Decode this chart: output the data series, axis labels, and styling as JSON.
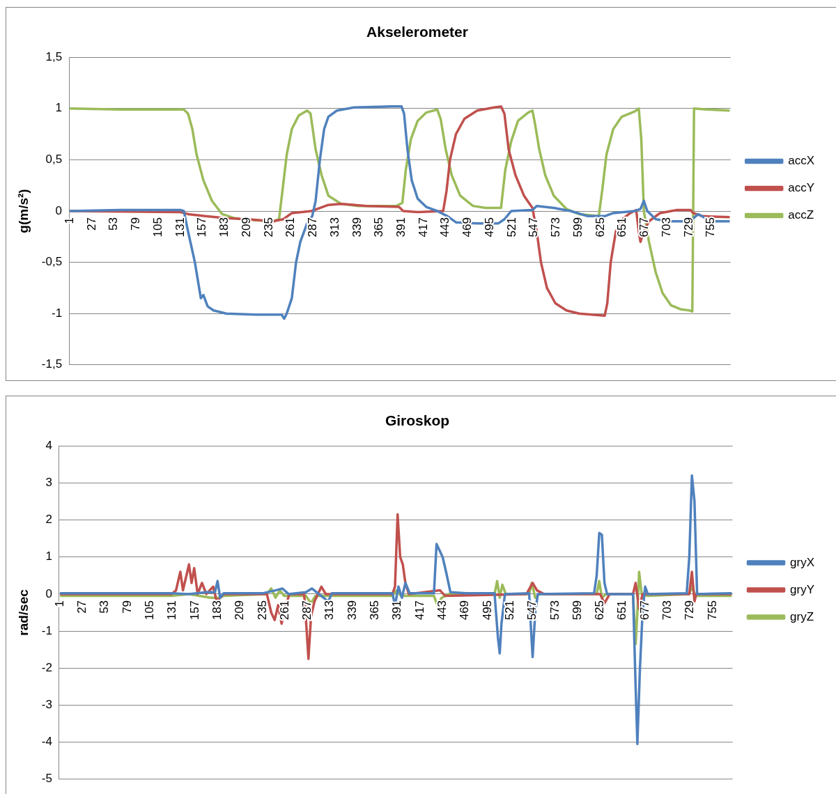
{
  "chart_data": [
    {
      "type": "line",
      "title": "Akselerometer",
      "ylabel": "g(m/s²)",
      "legend": "right",
      "grid": "y",
      "xlim": [
        0,
        778
      ],
      "xticks": [
        1,
        27,
        53,
        79,
        105,
        131,
        157,
        183,
        209,
        235,
        261,
        287,
        313,
        339,
        365,
        391,
        417,
        443,
        469,
        495,
        521,
        547,
        573,
        599,
        625,
        651,
        677,
        703,
        729,
        755
      ],
      "ylim": [
        -1.5,
        1.5
      ],
      "yticks": [
        {
          "value": -1.5,
          "label": "-1,5"
        },
        -1,
        {
          "value": -0.5,
          "label": "-0,5"
        },
        0,
        {
          "value": 0.5,
          "label": "0,5"
        },
        1,
        {
          "value": 1.5,
          "label": "1,5"
        }
      ],
      "series": [
        {
          "name": "accX",
          "color": "#4f81bd",
          "x": [
            1,
            60,
            131,
            135,
            140,
            148,
            153,
            155,
            158,
            163,
            170,
            185,
            220,
            250,
            253,
            256,
            262,
            267,
            272,
            280,
            286,
            290,
            295,
            300,
            305,
            315,
            335,
            380,
            391,
            394,
            398,
            403,
            410,
            420,
            433,
            445,
            455,
            480,
            505,
            512,
            520,
            545,
            550,
            570,
            590,
            610,
            630,
            640,
            665,
            672,
            676,
            680,
            690,
            705,
            730,
            740,
            755,
            777
          ],
          "values": [
            0,
            0.01,
            0.01,
            0,
            -0.2,
            -0.5,
            -0.75,
            -0.85,
            -0.82,
            -0.93,
            -0.97,
            -1,
            -1.01,
            -1.01,
            -1.05,
            -1,
            -0.85,
            -0.5,
            -0.3,
            -0.12,
            -0.05,
            0.1,
            0.5,
            0.8,
            0.92,
            0.98,
            1.01,
            1.02,
            1.02,
            0.95,
            0.6,
            0.3,
            0.12,
            0.04,
            0,
            -0.05,
            -0.11,
            -0.12,
            -0.12,
            -0.08,
            0,
            0.01,
            0.05,
            0.03,
            0,
            -0.05,
            -0.05,
            -0.02,
            0,
            0.02,
            0.1,
            0,
            -0.08,
            -0.1,
            -0.1,
            -0.03,
            -0.1,
            -0.1
          ]
        },
        {
          "name": "accY",
          "color": "#c0504d",
          "x": [
            1,
            131,
            140,
            160,
            185,
            210,
            240,
            252,
            262,
            285,
            295,
            305,
            320,
            350,
            388,
            393,
            410,
            440,
            444,
            448,
            455,
            465,
            480,
            500,
            508,
            512,
            517,
            525,
            535,
            545,
            550,
            555,
            562,
            572,
            585,
            600,
            630,
            633,
            637,
            643,
            652,
            660,
            667,
            670,
            672,
            676,
            682,
            695,
            715,
            731,
            734,
            745,
            777
          ],
          "values": [
            0,
            -0.01,
            -0.03,
            -0.05,
            -0.07,
            -0.08,
            -0.1,
            -0.08,
            -0.02,
            0,
            0.03,
            0.06,
            0.07,
            0.05,
            0.04,
            0,
            -0.01,
            0,
            0.2,
            0.5,
            0.75,
            0.9,
            0.98,
            1.01,
            1.02,
            0.95,
            0.6,
            0.35,
            0.15,
            0.03,
            -0.2,
            -0.5,
            -0.75,
            -0.9,
            -0.97,
            -1,
            -1.02,
            -0.9,
            -0.5,
            -0.2,
            -0.07,
            -0.02,
            0.01,
            -0.2,
            -0.3,
            -0.2,
            -0.1,
            -0.02,
            0.01,
            0.01,
            -0.02,
            -0.05,
            -0.06
          ]
        },
        {
          "name": "accZ",
          "color": "#9bbb59",
          "x": [
            1,
            60,
            135,
            140,
            145,
            150,
            158,
            168,
            180,
            195,
            220,
            240,
            247,
            251,
            256,
            262,
            270,
            280,
            284,
            290,
            297,
            305,
            320,
            340,
            385,
            392,
            396,
            402,
            410,
            420,
            433,
            437,
            443,
            450,
            460,
            475,
            490,
            508,
            513,
            520,
            528,
            540,
            545,
            548,
            553,
            560,
            570,
            585,
            600,
            623,
            627,
            632,
            640,
            650,
            665,
            670,
            673,
            676,
            682,
            690,
            698,
            708,
            720,
            730,
            733,
            735,
            750,
            777
          ],
          "values": [
            1,
            0.99,
            0.99,
            0.95,
            0.8,
            0.55,
            0.3,
            0.1,
            -0.03,
            -0.07,
            -0.09,
            -0.1,
            -0.08,
            0.2,
            0.55,
            0.8,
            0.93,
            0.98,
            0.95,
            0.6,
            0.35,
            0.15,
            0.07,
            0.05,
            0.05,
            0.08,
            0.4,
            0.7,
            0.88,
            0.96,
            0.99,
            0.9,
            0.6,
            0.35,
            0.15,
            0.05,
            0.03,
            0.03,
            0.4,
            0.68,
            0.88,
            0.96,
            0.98,
            0.85,
            0.6,
            0.35,
            0.15,
            0.02,
            -0.03,
            -0.05,
            0.2,
            0.55,
            0.8,
            0.92,
            0.97,
            1,
            0.7,
            0,
            -0.3,
            -0.6,
            -0.8,
            -0.92,
            -0.96,
            -0.97,
            -0.98,
            1,
            0.99,
            0.98
          ]
        }
      ]
    },
    {
      "type": "line",
      "title": "Giroskop",
      "ylabel": "rad/sec",
      "legend": "right",
      "grid": "y",
      "xlim": [
        0,
        778
      ],
      "xticks": [
        1,
        27,
        53,
        79,
        105,
        131,
        157,
        183,
        209,
        235,
        261,
        287,
        313,
        339,
        365,
        391,
        417,
        443,
        469,
        495,
        521,
        547,
        573,
        599,
        625,
        651,
        677,
        703,
        729,
        755
      ],
      "ylim": [
        -5,
        4
      ],
      "yticks": [
        -5,
        -4,
        -3,
        -2,
        -1,
        0,
        1,
        2,
        3,
        4
      ],
      "series": [
        {
          "name": "gryX",
          "color": "#4f81bd",
          "x": [
            1,
            130,
            150,
            170,
            180,
            183,
            186,
            190,
            235,
            250,
            258,
            265,
            285,
            292,
            300,
            311,
            315,
            385,
            388,
            392,
            396,
            400,
            405,
            433,
            436,
            439,
            443,
            447,
            452,
            470,
            503,
            507,
            509,
            511,
            515,
            543,
            545,
            547,
            550,
            553,
            618,
            621,
            624,
            627,
            630,
            633,
            663,
            666,
            668,
            671,
            674,
            677,
            680,
            725,
            728,
            731,
            734,
            737,
            777
          ],
          "values": [
            0.02,
            0.02,
            0,
            0.05,
            0.05,
            0.35,
            -0.1,
            0.02,
            0.02,
            0.1,
            0.15,
            0,
            0.05,
            0.15,
            0,
            -0.2,
            0.02,
            0.02,
            -0.3,
            0.2,
            -0.1,
            0.3,
            0.02,
            0.02,
            1.35,
            1.2,
            1,
            0.6,
            0.05,
            0.02,
            0.02,
            -1.2,
            -1.6,
            -0.8,
            0,
            0.02,
            -0.9,
            -1.7,
            -0.5,
            0,
            0.02,
            0.5,
            1.65,
            1.6,
            0.3,
            0,
            0,
            -2.5,
            -4.05,
            -2,
            -0.5,
            0.2,
            0,
            0.02,
            1,
            3.2,
            2.5,
            0,
            0.02
          ]
        },
        {
          "name": "gryY",
          "color": "#c0504d",
          "x": [
            1,
            130,
            135,
            140,
            143,
            147,
            150,
            153,
            156,
            160,
            165,
            170,
            178,
            182,
            190,
            240,
            245,
            249,
            253,
            257,
            262,
            266,
            283,
            286,
            288,
            291,
            295,
            303,
            308,
            385,
            388,
            391,
            394,
            397,
            400,
            404,
            440,
            446,
            540,
            547,
            552,
            560,
            625,
            630,
            636,
            663,
            666,
            670,
            674,
            728,
            731,
            734,
            736,
            777
          ],
          "values": [
            0,
            0,
            0.1,
            0.6,
            0.1,
            0.5,
            0.8,
            0.3,
            0.7,
            0,
            0.3,
            0,
            0.2,
            -0.2,
            0,
            0,
            -0.5,
            -0.7,
            -0.3,
            -0.8,
            -0.3,
            0,
            0,
            -1,
            -1.75,
            -0.6,
            -0.2,
            0.2,
            0,
            0,
            0.2,
            2.15,
            1,
            0.8,
            0.3,
            0,
            0.1,
            -0.05,
            0,
            0.3,
            0.1,
            0,
            0,
            -0.25,
            0,
            0,
            0.3,
            -0.4,
            0,
            0,
            0.6,
            -0.2,
            0,
            0
          ]
        },
        {
          "name": "gryZ",
          "color": "#9bbb59",
          "x": [
            1,
            130,
            150,
            175,
            185,
            190,
            240,
            245,
            250,
            255,
            260,
            285,
            291,
            296,
            385,
            390,
            395,
            433,
            437,
            442,
            450,
            503,
            506,
            509,
            512,
            516,
            543,
            546,
            550,
            555,
            621,
            624,
            627,
            632,
            663,
            666,
            668,
            670,
            673,
            680,
            728,
            731,
            735,
            777
          ],
          "values": [
            -0.05,
            -0.05,
            0,
            -0.1,
            -0.1,
            -0.05,
            0,
            0.15,
            -0.1,
            0.1,
            -0.05,
            -0.05,
            -0.25,
            -0.05,
            -0.05,
            0.1,
            -0.05,
            -0.05,
            -0.3,
            -0.1,
            0,
            0,
            0.35,
            -0.1,
            0.25,
            0,
            0,
            0.3,
            -0.1,
            0,
            0,
            0.35,
            -0.1,
            0,
            0,
            -1.35,
            -0.5,
            0.6,
            0,
            -0.05,
            0,
            0.2,
            -0.05,
            -0.05
          ]
        }
      ]
    }
  ]
}
